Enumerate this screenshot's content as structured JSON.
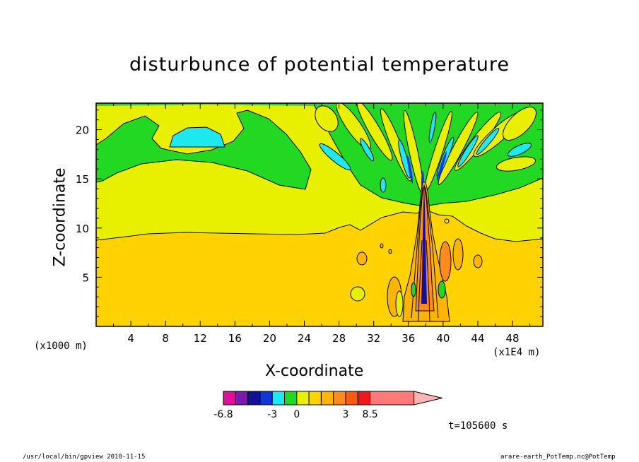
{
  "chart_data": {
    "type": "heatmap",
    "title": "disturbunce of potential temperature",
    "xlabel": "X-coordinate",
    "ylabel": "Z-coordinate",
    "x_unit_left": "(x1000 m)",
    "x_unit_right": "(x1E4 m)",
    "x_ticks": [
      4,
      8,
      12,
      16,
      20,
      24,
      28,
      32,
      36,
      40,
      44,
      48
    ],
    "y_ticks": [
      5,
      10,
      15,
      20
    ],
    "xlim": [
      0,
      51.5
    ],
    "ylim": [
      0,
      22.7
    ],
    "colorbar": {
      "tick_labels": [
        {
          "value": -6.8,
          "label": "-6.8"
        },
        {
          "value": -3,
          "label": "-3"
        },
        {
          "value": 0,
          "label": "0"
        },
        {
          "value": 3,
          "label": "3"
        },
        {
          "value": 8.5,
          "label": "8.5"
        }
      ],
      "colors": [
        "#e0109c",
        "#7a18b0",
        "#10109c",
        "#1036e0",
        "#20e8f0",
        "#22d822",
        "#e8f000",
        "#ffd200",
        "#ffb400",
        "#ff8a1e",
        "#ff5a10",
        "#f01818",
        "#ff7a78",
        "#ffb4b4"
      ],
      "extend": "max"
    },
    "features": {
      "background_color": "#ffd200",
      "upper_band_color": "#e8f000",
      "top_band_color": "#22d822",
      "blob_color": "#20e8f0",
      "column_center_x": 37.2
    }
  },
  "time_label": "t=105600 s",
  "footer_left": "/usr/local/bin/gpview  2010-11-15",
  "footer_right": "arare-earth_PotTemp.nc@PotTemp"
}
